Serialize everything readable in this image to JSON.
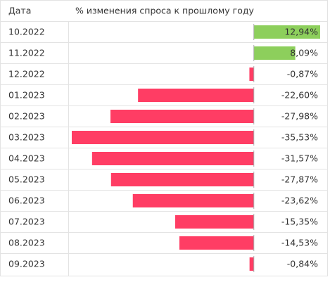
{
  "chart_data": {
    "type": "bar",
    "orientation": "horizontal",
    "columns": [
      "Дата",
      "% изменения спроса к прошлому году"
    ],
    "categories": [
      "10.2022",
      "11.2022",
      "12.2022",
      "01.2023",
      "02.2023",
      "03.2023",
      "04.2023",
      "05.2023",
      "06.2023",
      "07.2023",
      "08.2023",
      "09.2023"
    ],
    "values": [
      12.94,
      8.09,
      -0.87,
      -22.6,
      -27.98,
      -35.53,
      -31.57,
      -27.87,
      -23.62,
      -15.35,
      -14.53,
      -0.84
    ],
    "value_labels": [
      "12,94%",
      "8,09%",
      "-0,87%",
      "-22,60%",
      "-27,98%",
      "-35,53%",
      "-31,57%",
      "-27,87%",
      "-23,62%",
      "-15,35%",
      "-14,53%",
      "-0,84%"
    ],
    "positive_color": "#8dcf5c",
    "negative_color": "#ff3d64"
  }
}
